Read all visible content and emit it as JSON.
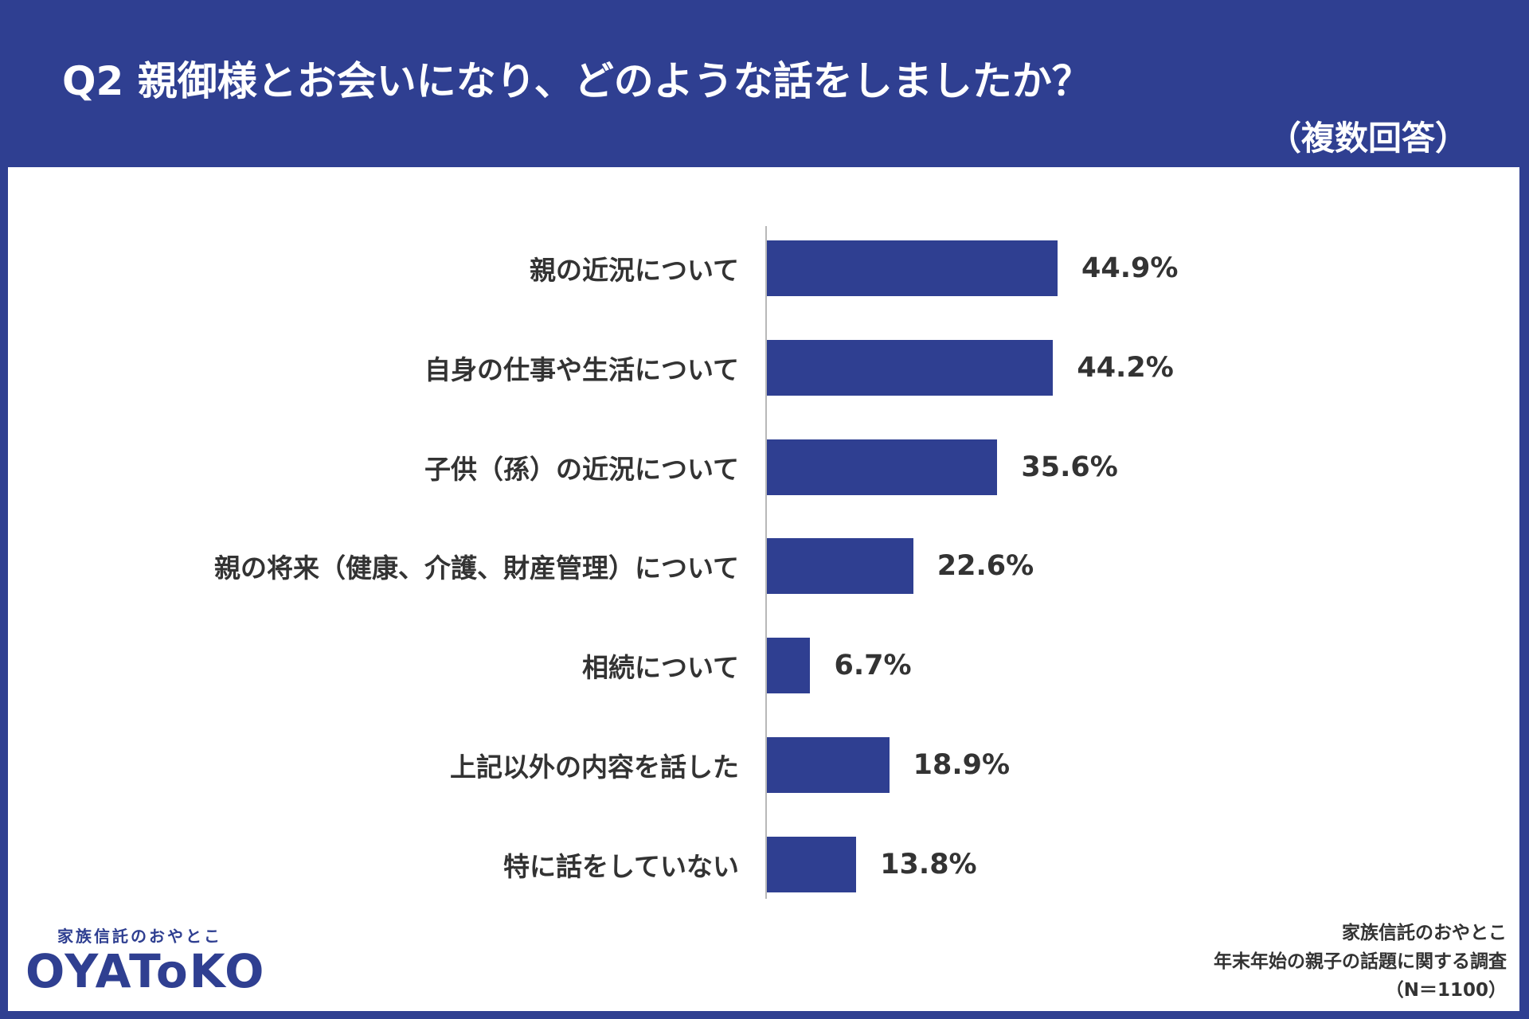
{
  "header": {
    "title": "Q2 親御様とお会いになり、どのような話をしましたか？",
    "subtitle": "（複数回答）"
  },
  "colors": {
    "brand": "#2f3f91",
    "bar": "#2f3f91",
    "text": "#333333",
    "axis": "#b8b8b8"
  },
  "chart_data": {
    "type": "bar",
    "orientation": "horizontal",
    "title": "Q2 親御様とお会いになり、どのような話をしましたか？",
    "subtitle": "（複数回答）",
    "categories": [
      "親の近況について",
      "自身の仕事や生活について",
      "子供（孫）の近況について",
      "親の将来（健康、介護、財産管理）について",
      "相続について",
      "上記以外の内容を話した",
      "特に話をしていない"
    ],
    "values": [
      44.9,
      44.2,
      35.6,
      22.6,
      6.7,
      18.9,
      13.8
    ],
    "labels": [
      "44.9%",
      "44.2%",
      "35.6%",
      "22.6%",
      "6.7%",
      "18.9%",
      "13.8%"
    ],
    "unit": "%",
    "xlim": [
      0,
      100
    ],
    "grid": false,
    "legend": "none"
  },
  "logo": {
    "tagline": "家族信託のおやとこ",
    "wordmark": "OYAToKO"
  },
  "source": {
    "line1": "家族信託のおやとこ",
    "line2": "年末年始の親子の話題に関する調査",
    "line3": "（N＝1100）"
  }
}
